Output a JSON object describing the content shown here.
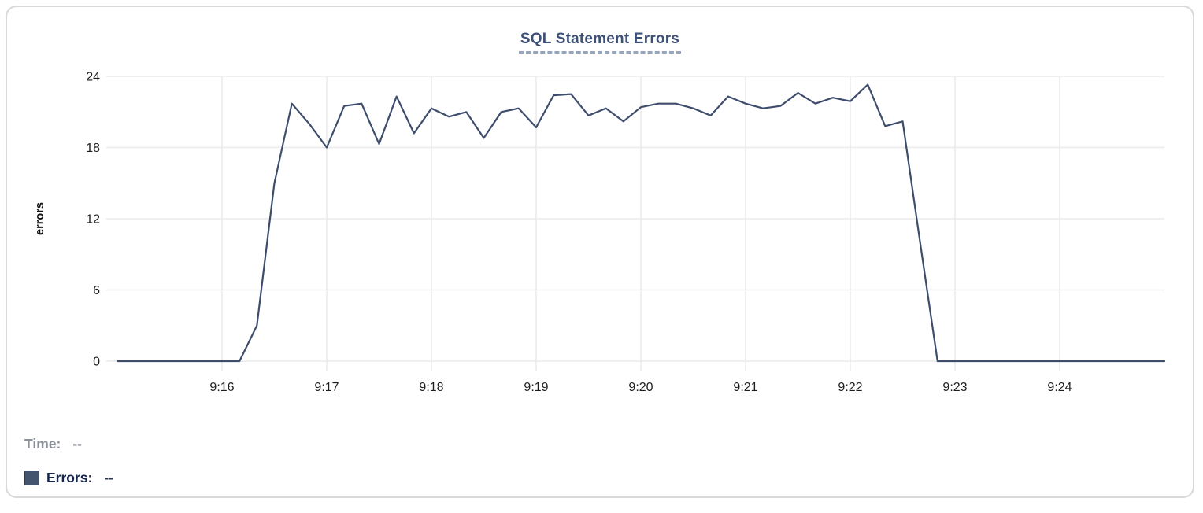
{
  "panel": {
    "title": "SQL Statement Errors"
  },
  "tooltip": {
    "time_label": "Time:",
    "time_value": "--",
    "errors_label": "Errors:",
    "errors_value": "--"
  },
  "colors": {
    "line": "#3e4d6c",
    "grid": "#ebebeb",
    "axis_text": "#1d1d1f",
    "y_axis_title": "#111111",
    "title": "#3e5077",
    "title_underline": "#97a5c0",
    "legend_time": "#8b909a",
    "legend_time_value": "#7f848e",
    "legend_errors": "#16254c",
    "legend_errors_value": "#2b3550",
    "swatch_fill": "#44536e",
    "swatch_border": "#2c3a57",
    "card_border": "#d9d9d9"
  },
  "chart_data": {
    "type": "line",
    "title": "SQL Statement Errors",
    "xlabel": "",
    "ylabel": "errors",
    "ylim": [
      0,
      24
    ],
    "y_ticks": [
      0,
      6,
      12,
      18,
      24
    ],
    "x_ticks": [
      "9:16",
      "9:17",
      "9:18",
      "9:19",
      "9:20",
      "9:21",
      "9:22",
      "9:23",
      "9:24"
    ],
    "grid": true,
    "legend_position": "bottom-left",
    "interval_seconds": 10,
    "x": [
      "9:15:00",
      "9:15:10",
      "9:15:20",
      "9:15:30",
      "9:15:40",
      "9:15:50",
      "9:16:00",
      "9:16:10",
      "9:16:20",
      "9:16:30",
      "9:16:40",
      "9:16:50",
      "9:17:00",
      "9:17:10",
      "9:17:20",
      "9:17:30",
      "9:17:40",
      "9:17:50",
      "9:18:00",
      "9:18:10",
      "9:18:20",
      "9:18:30",
      "9:18:40",
      "9:18:50",
      "9:19:00",
      "9:19:10",
      "9:19:20",
      "9:19:30",
      "9:19:40",
      "9:19:50",
      "9:20:00",
      "9:20:10",
      "9:20:20",
      "9:20:30",
      "9:20:40",
      "9:20:50",
      "9:21:00",
      "9:21:10",
      "9:21:20",
      "9:21:30",
      "9:21:40",
      "9:21:50",
      "9:22:00",
      "9:22:10",
      "9:22:20",
      "9:22:30",
      "9:22:40",
      "9:22:50",
      "9:23:00",
      "9:23:10",
      "9:23:20",
      "9:23:30",
      "9:23:40",
      "9:23:50",
      "9:24:00",
      "9:24:10",
      "9:24:20",
      "9:24:30",
      "9:24:40",
      "9:24:50",
      "9:25:00"
    ],
    "series": [
      {
        "name": "Errors",
        "color": "#3e4d6c",
        "values": [
          0,
          0,
          0,
          0,
          0,
          0,
          0,
          0,
          3,
          15,
          21.7,
          20,
          18,
          21.5,
          21.7,
          18.3,
          22.3,
          19.2,
          21.3,
          20.6,
          21,
          18.8,
          21,
          21.3,
          19.7,
          22.4,
          22.5,
          20.7,
          21.3,
          20.2,
          21.4,
          21.7,
          21.7,
          21.3,
          20.7,
          22.3,
          21.7,
          21.3,
          21.5,
          22.6,
          21.7,
          22.2,
          21.9,
          23.3,
          19.8,
          20.2,
          10,
          0,
          0,
          0,
          0,
          0,
          0,
          0,
          0,
          0,
          0,
          0,
          0,
          0,
          0
        ]
      }
    ]
  }
}
